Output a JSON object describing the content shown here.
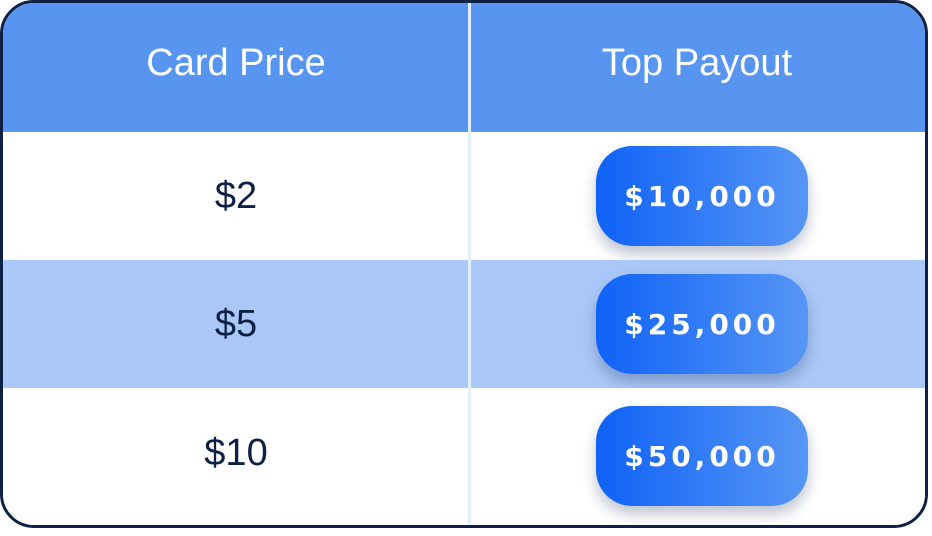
{
  "table": {
    "headers": [
      "Card Price",
      "Top Payout"
    ],
    "rows": [
      {
        "price": "$2",
        "payout": "$10,000"
      },
      {
        "price": "$5",
        "payout": "$25,000"
      },
      {
        "price": "$10",
        "payout": "$50,000"
      }
    ]
  },
  "colors": {
    "header_bg": "#5795f0",
    "alt_row_bg": "#aac8f7",
    "border": "#0d2146",
    "pill_gradient_start": "#0f62f7",
    "pill_gradient_end": "#5796f5"
  }
}
